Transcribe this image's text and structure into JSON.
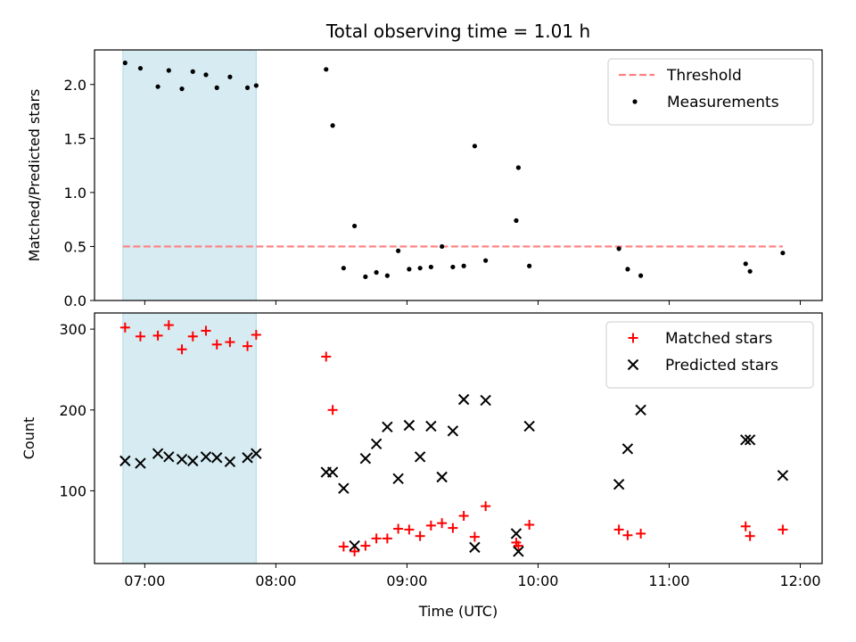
{
  "chart_data": {
    "title": "Total observing time = 1.01 h",
    "xlabel": "Time (UTC)",
    "x_ticks": [
      "07:00",
      "08:00",
      "09:00",
      "10:00",
      "11:00",
      "12:00"
    ],
    "xlim": [
      "06:37",
      "12:10"
    ],
    "highlight_span": {
      "start": "06:50",
      "end": "07:51",
      "color": "#add8e6"
    },
    "panels": [
      {
        "type": "scatter",
        "ylabel": "Matched/Predicted stars",
        "ylim": [
          0,
          2.32
        ],
        "y_ticks": [
          "0.0",
          "0.5",
          "1.0",
          "1.5",
          "2.0"
        ],
        "y_tick_values": [
          0,
          0.5,
          1.0,
          1.5,
          2.0
        ],
        "legend_position": "upper-right",
        "threshold": {
          "name": "Threshold",
          "value": 0.5,
          "x_start": "06:50",
          "x_end": "11:52",
          "color": "#ff7f7f",
          "style": "dashed"
        },
        "series": [
          {
            "name": "Measurements",
            "color": "#000000",
            "marker": "dot",
            "points": [
              [
                "06:51",
                2.2
              ],
              [
                "06:58",
                2.15
              ],
              [
                "07:06",
                1.98
              ],
              [
                "07:11",
                2.13
              ],
              [
                "07:17",
                1.96
              ],
              [
                "07:22",
                2.12
              ],
              [
                "07:28",
                2.09
              ],
              [
                "07:33",
                1.97
              ],
              [
                "07:39",
                2.07
              ],
              [
                "07:47",
                1.97
              ],
              [
                "07:51",
                1.99
              ],
              [
                "08:23",
                2.14
              ],
              [
                "08:26",
                1.62
              ],
              [
                "08:31",
                0.3
              ],
              [
                "08:36",
                0.69
              ],
              [
                "08:41",
                0.22
              ],
              [
                "08:46",
                0.26
              ],
              [
                "08:51",
                0.23
              ],
              [
                "08:56",
                0.46
              ],
              [
                "09:01",
                0.29
              ],
              [
                "09:06",
                0.3
              ],
              [
                "09:11",
                0.31
              ],
              [
                "09:16",
                0.5
              ],
              [
                "09:21",
                0.31
              ],
              [
                "09:26",
                0.32
              ],
              [
                "09:31",
                1.43
              ],
              [
                "09:36",
                0.37
              ],
              [
                "09:50",
                0.74
              ],
              [
                "09:51",
                1.23
              ],
              [
                "09:56",
                0.32
              ],
              [
                "10:37",
                0.48
              ],
              [
                "10:41",
                0.29
              ],
              [
                "10:47",
                0.23
              ],
              [
                "11:35",
                0.34
              ],
              [
                "11:37",
                0.27
              ],
              [
                "11:52",
                0.44
              ]
            ]
          }
        ]
      },
      {
        "type": "scatter",
        "ylabel": "Count",
        "ylim": [
          10,
          320
        ],
        "y_ticks": [
          "100",
          "200",
          "300"
        ],
        "y_tick_values": [
          100,
          200,
          300
        ],
        "legend_position": "upper-right",
        "series": [
          {
            "name": "Matched stars",
            "color": "#ff0000",
            "marker": "plus",
            "points": [
              [
                "06:51",
                302
              ],
              [
                "06:58",
                291
              ],
              [
                "07:06",
                292
              ],
              [
                "07:11",
                305
              ],
              [
                "07:17",
                275
              ],
              [
                "07:22",
                291
              ],
              [
                "07:28",
                298
              ],
              [
                "07:33",
                281
              ],
              [
                "07:39",
                284
              ],
              [
                "07:47",
                279
              ],
              [
                "07:51",
                293
              ],
              [
                "08:23",
                266
              ],
              [
                "08:26",
                200
              ],
              [
                "08:31",
                31
              ],
              [
                "08:36",
                25
              ],
              [
                "08:41",
                32
              ],
              [
                "08:46",
                41
              ],
              [
                "08:51",
                41
              ],
              [
                "08:56",
                53
              ],
              [
                "09:01",
                52
              ],
              [
                "09:06",
                44
              ],
              [
                "09:11",
                57
              ],
              [
                "09:16",
                60
              ],
              [
                "09:21",
                54
              ],
              [
                "09:26",
                69
              ],
              [
                "09:31",
                43
              ],
              [
                "09:36",
                81
              ],
              [
                "09:50",
                36
              ],
              [
                "09:51",
                32
              ],
              [
                "09:56",
                58
              ],
              [
                "10:37",
                52
              ],
              [
                "10:41",
                45
              ],
              [
                "10:47",
                47
              ],
              [
                "11:35",
                56
              ],
              [
                "11:37",
                44
              ],
              [
                "11:52",
                52
              ]
            ]
          },
          {
            "name": "Predicted stars",
            "color": "#000000",
            "marker": "x",
            "points": [
              [
                "06:51",
                137
              ],
              [
                "06:58",
                134
              ],
              [
                "07:06",
                146
              ],
              [
                "07:11",
                142
              ],
              [
                "07:17",
                139
              ],
              [
                "07:22",
                137
              ],
              [
                "07:28",
                142
              ],
              [
                "07:33",
                141
              ],
              [
                "07:39",
                136
              ],
              [
                "07:47",
                141
              ],
              [
                "07:51",
                146
              ],
              [
                "08:23",
                123
              ],
              [
                "08:26",
                123
              ],
              [
                "08:31",
                103
              ],
              [
                "08:36",
                32
              ],
              [
                "08:41",
                140
              ],
              [
                "08:46",
                158
              ],
              [
                "08:51",
                179
              ],
              [
                "08:56",
                115
              ],
              [
                "09:01",
                181
              ],
              [
                "09:06",
                142
              ],
              [
                "09:11",
                180
              ],
              [
                "09:16",
                117
              ],
              [
                "09:21",
                174
              ],
              [
                "09:26",
                213
              ],
              [
                "09:31",
                30
              ],
              [
                "09:36",
                212
              ],
              [
                "09:50",
                47
              ],
              [
                "09:51",
                25
              ],
              [
                "09:56",
                180
              ],
              [
                "10:37",
                108
              ],
              [
                "10:41",
                152
              ],
              [
                "10:47",
                200
              ],
              [
                "11:35",
                163
              ],
              [
                "11:37",
                163
              ],
              [
                "11:52",
                119
              ]
            ]
          }
        ]
      }
    ]
  }
}
